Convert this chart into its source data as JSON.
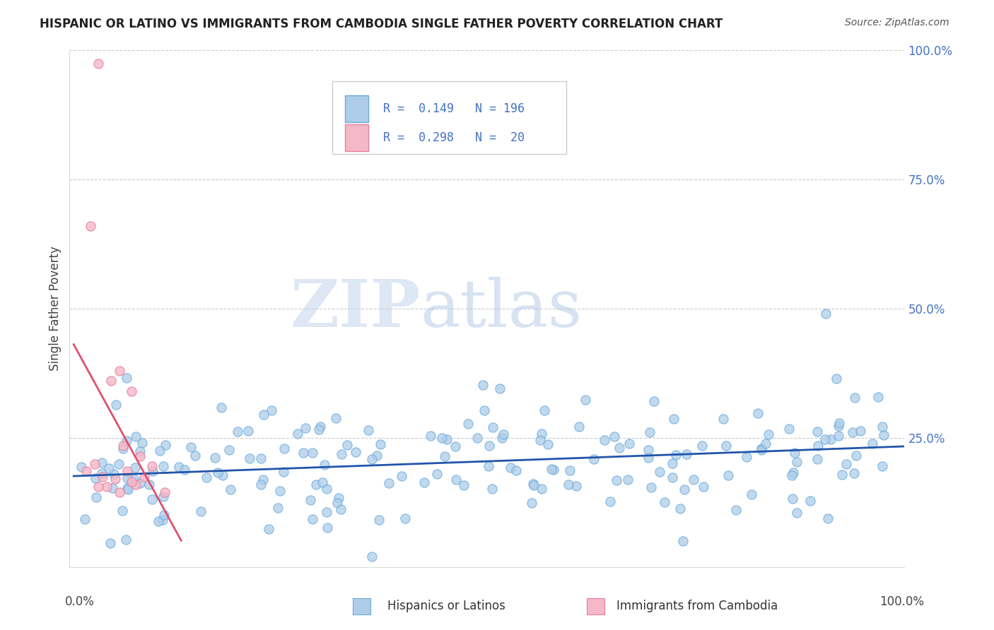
{
  "title": "HISPANIC OR LATINO VS IMMIGRANTS FROM CAMBODIA SINGLE FATHER POVERTY CORRELATION CHART",
  "source": "Source: ZipAtlas.com",
  "ylabel": "Single Father Poverty",
  "ytick_labels": [
    "",
    "25.0%",
    "50.0%",
    "75.0%",
    "100.0%"
  ],
  "ytick_values": [
    0.0,
    0.25,
    0.5,
    0.75,
    1.0
  ],
  "watermark_zip": "ZIP",
  "watermark_atlas": "atlas",
  "R1": 0.149,
  "N1": 196,
  "R2": 0.298,
  "N2": 20,
  "blue_dot_face": "#aecde8",
  "blue_dot_edge": "#6aabe0",
  "pink_dot_face": "#f4b8c8",
  "pink_dot_edge": "#e8809a",
  "blue_line_color": "#2255aa",
  "pink_line_color": "#e05070",
  "ytick_color": "#4472c4",
  "legend_labels": [
    "Hispanics or Latinos",
    "Immigrants from Cambodia"
  ],
  "xlim": [
    0.0,
    1.0
  ],
  "ylim": [
    0.0,
    1.0
  ]
}
